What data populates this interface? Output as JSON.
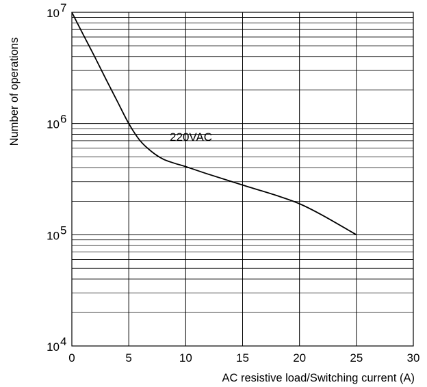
{
  "chart_data": {
    "type": "line",
    "title": "",
    "xlabel": "AC resistive load/Switching current (A)",
    "ylabel": "Number of operations",
    "y_scale": "log",
    "xlim": [
      0,
      30
    ],
    "ylim": [
      10000,
      10000000
    ],
    "grid": true,
    "x_ticks": [
      "0",
      "5",
      "10",
      "15",
      "20",
      "25",
      "30"
    ],
    "y_ticks": [
      {
        "value": 10000,
        "base": "10",
        "exp": "4"
      },
      {
        "value": 100000,
        "base": "10",
        "exp": "5"
      },
      {
        "value": 1000000,
        "base": "10",
        "exp": "6"
      },
      {
        "value": 10000000,
        "base": "10",
        "exp": "7"
      }
    ],
    "annotations": [
      {
        "text": "220VAC",
        "x": 8.6,
        "y": 700000
      }
    ],
    "series": [
      {
        "name": "",
        "x": [
          0,
          1,
          2,
          3,
          4,
          5,
          6,
          7,
          8,
          9,
          10,
          12,
          15,
          18,
          20,
          22,
          25
        ],
        "y": [
          10000000,
          6300000,
          4000000,
          2500000,
          1580000,
          1000000,
          700000,
          560000,
          480000,
          440000,
          410000,
          350000,
          280000,
          225000,
          190000,
          150000,
          100000
        ]
      }
    ]
  }
}
